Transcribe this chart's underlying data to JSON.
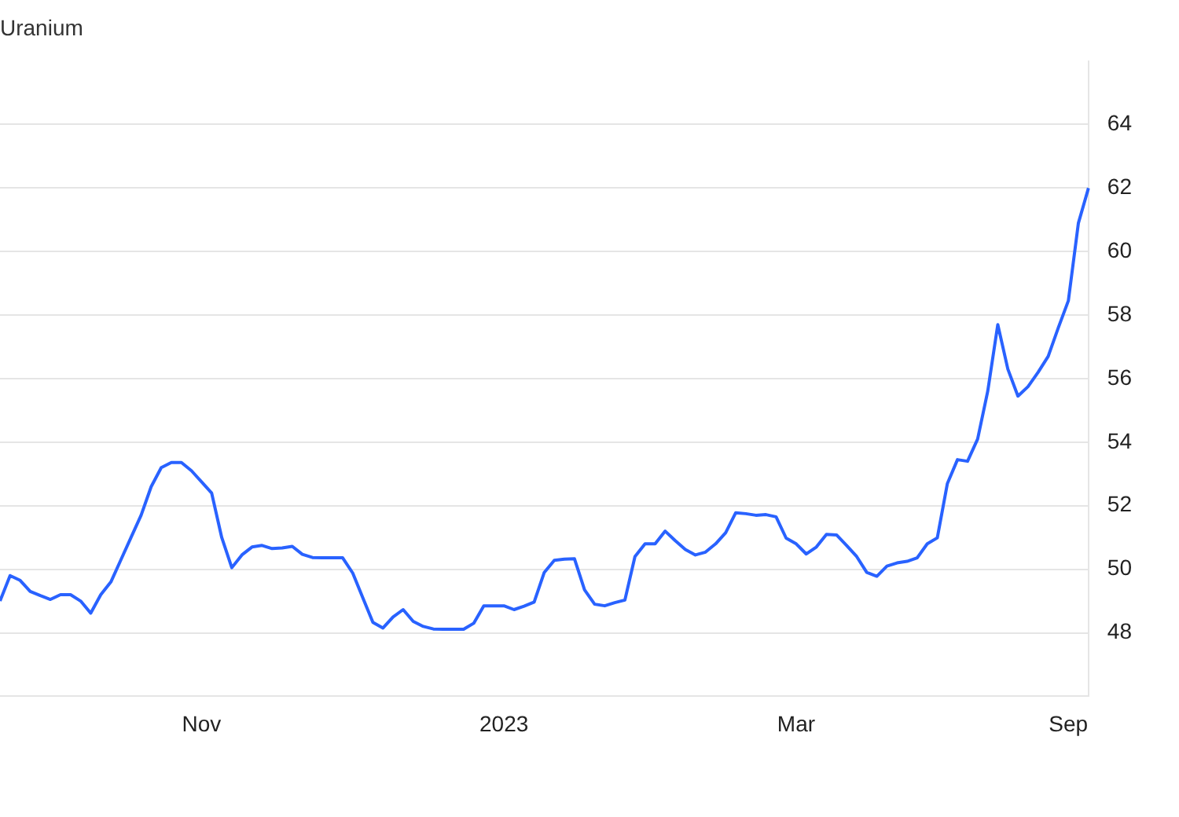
{
  "chart_data": {
    "type": "line",
    "title": "Uranium",
    "categories": [
      null,
      null,
      null,
      null,
      null,
      null,
      null,
      null,
      null,
      null,
      null,
      null,
      null,
      null,
      null,
      null,
      null,
      null,
      null,
      null,
      "Nov",
      null,
      null,
      null,
      null,
      null,
      null,
      null,
      null,
      null,
      null,
      null,
      null,
      null,
      null,
      null,
      null,
      null,
      null,
      null,
      null,
      null,
      null,
      null,
      null,
      null,
      null,
      null,
      null,
      null,
      "2023",
      null,
      null,
      null,
      null,
      null,
      null,
      null,
      null,
      null,
      null,
      null,
      null,
      null,
      null,
      null,
      null,
      null,
      null,
      null,
      null,
      null,
      null,
      null,
      null,
      null,
      null,
      null,
      null,
      "Mar",
      null,
      null,
      null,
      null,
      null,
      null,
      null,
      null,
      null,
      null,
      null,
      null,
      null,
      null,
      null,
      null,
      null,
      null,
      null,
      null,
      null,
      null,
      null,
      null,
      null,
      null,
      "Sep",
      null,
      null
    ],
    "series": [
      {
        "color": "#2962ff",
        "values": [
          49.0,
          49.8,
          49.65,
          49.3,
          49.17,
          49.05,
          49.2,
          49.2,
          49.0,
          48.62,
          49.2,
          49.6,
          50.3,
          51.0,
          51.7,
          52.6,
          53.2,
          53.36,
          53.36,
          53.1,
          52.75,
          52.4,
          51.0,
          50.05,
          50.45,
          50.7,
          50.75,
          50.65,
          50.67,
          50.72,
          50.47,
          50.37,
          50.36,
          50.36,
          50.36,
          49.88,
          49.1,
          48.33,
          48.15,
          48.5,
          48.73,
          48.36,
          48.2,
          48.12,
          48.11,
          48.11,
          48.11,
          48.3,
          48.85,
          48.85,
          48.85,
          48.73,
          48.84,
          48.97,
          49.9,
          50.28,
          50.32,
          50.33,
          49.35,
          48.9,
          48.85,
          48.95,
          49.03,
          50.4,
          50.8,
          50.8,
          51.2,
          50.9,
          50.62,
          50.45,
          50.54,
          50.8,
          51.15,
          51.78,
          51.75,
          51.7,
          51.72,
          51.65,
          50.98,
          50.8,
          50.48,
          50.7,
          51.1,
          51.08,
          50.75,
          50.4,
          49.9,
          49.78,
          50.1,
          50.2,
          50.25,
          50.36,
          50.8,
          50.99,
          52.7,
          53.45,
          53.4,
          54.1,
          55.6,
          57.7,
          56.3,
          55.45,
          55.75,
          56.2,
          56.7,
          57.6,
          58.45,
          60.9,
          62.0
        ]
      }
    ],
    "ylim": [
      46,
      66
    ],
    "yticks": [
      48,
      50,
      52,
      54,
      56,
      58,
      60,
      62,
      64
    ],
    "grid": true,
    "legend": false,
    "marker": "none",
    "line_style": "solid"
  }
}
